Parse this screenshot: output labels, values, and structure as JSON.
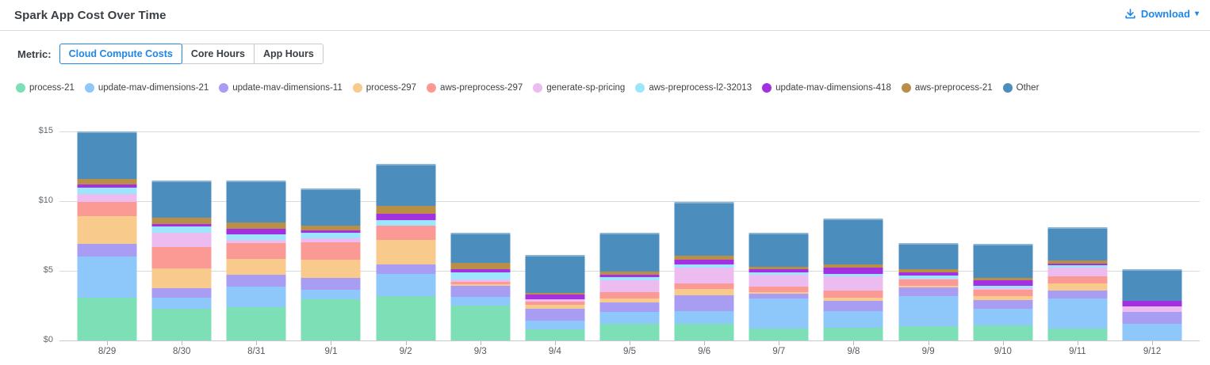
{
  "header": {
    "title": "Spark App Cost Over Time",
    "download_label": "Download",
    "download_icon": "download-icon",
    "caret_icon": "chevron-down-icon"
  },
  "colors": {
    "accent_blue": "#1E87E8",
    "gridline": "#d8dbde",
    "axis_text": "#63696e"
  },
  "metric": {
    "label": "Metric:",
    "options": [
      {
        "label": "Cloud Compute Costs",
        "selected": true
      },
      {
        "label": "Core Hours",
        "selected": false
      },
      {
        "label": "App Hours",
        "selected": false
      }
    ]
  },
  "chart_data": {
    "type": "bar",
    "stacked": true,
    "stack_order": "bottom-to-top",
    "grid": "horizontal",
    "legend_position": "top",
    "ylim": [
      0,
      15
    ],
    "yticks": [
      {
        "label": "$0",
        "value": 0
      },
      {
        "label": "$5",
        "value": 5
      },
      {
        "label": "$10",
        "value": 10
      },
      {
        "label": "$15",
        "value": 15
      }
    ],
    "categories": [
      "8/29",
      "8/30",
      "8/31",
      "9/1",
      "9/2",
      "9/3",
      "9/4",
      "9/5",
      "9/6",
      "9/7",
      "9/8",
      "9/9",
      "9/10",
      "9/11",
      "9/12"
    ],
    "series": [
      {
        "name": "process-21",
        "color": "#7DDFB6",
        "values": [
          3.09,
          2.25,
          2.38,
          2.95,
          3.19,
          2.5,
          0.79,
          1.18,
          1.18,
          0.84,
          0.94,
          1.03,
          1.09,
          0.88,
          0
        ]
      },
      {
        "name": "update-mav-dimensions-21",
        "color": "#8EC7FA",
        "values": [
          2.91,
          0.81,
          1.5,
          0.71,
          1.59,
          0.65,
          0.66,
          0.85,
          0.92,
          2.16,
          1.16,
          2.16,
          1.16,
          2.12,
          1.22
        ]
      },
      {
        "name": "update-mav-dimensions-11",
        "color": "#A89CF3",
        "values": [
          0.94,
          0.69,
          0.85,
          0.81,
          0.66,
          0.75,
          0.8,
          0.69,
          1.13,
          0.34,
          0.75,
          0.6,
          0.66,
          0.57,
          0.84
        ]
      },
      {
        "name": "process-297",
        "color": "#F8CA8C",
        "values": [
          1.97,
          1.44,
          1.14,
          1.34,
          1.78,
          0.13,
          0.32,
          0.28,
          0.48,
          0.13,
          0.24,
          0.15,
          0.28,
          0.5,
          0
        ]
      },
      {
        "name": "aws-preprocess-297",
        "color": "#FB9A95",
        "values": [
          1.03,
          1.5,
          1.13,
          1.26,
          1.03,
          0.17,
          0.23,
          0.47,
          0.36,
          0.38,
          0.48,
          0.43,
          0.47,
          0.52,
          0
        ]
      },
      {
        "name": "generate-sp-pricing",
        "color": "#ECBBF0",
        "values": [
          0.56,
          1.05,
          0.22,
          0.28,
          0,
          0.17,
          0.16,
          0.84,
          1.14,
          0.88,
          1.06,
          0.05,
          0.09,
          0.62,
          0.41
        ]
      },
      {
        "name": "aws-preprocess-l2-32013",
        "color": "#9BE6FC",
        "values": [
          0.45,
          0.45,
          0.41,
          0.38,
          0.41,
          0.54,
          0,
          0.23,
          0.23,
          0.15,
          0.15,
          0.24,
          0.19,
          0.19,
          0
        ]
      },
      {
        "name": "update-mav-dimensions-418",
        "color": "#A331E2",
        "values": [
          0.22,
          0.19,
          0.4,
          0.18,
          0.43,
          0.21,
          0.36,
          0.19,
          0.37,
          0.22,
          0.43,
          0.25,
          0.37,
          0.13,
          0.38
        ]
      },
      {
        "name": "aws-preprocess-21",
        "color": "#B98F47",
        "values": [
          0.41,
          0.43,
          0.41,
          0.34,
          0.55,
          0.45,
          0.11,
          0.24,
          0.25,
          0.19,
          0.23,
          0.18,
          0.19,
          0.19,
          0
        ]
      },
      {
        "name": "Other",
        "color": "#4B8DBC",
        "values": [
          3.43,
          2.68,
          3.05,
          2.68,
          3.05,
          2.16,
          2.72,
          2.76,
          3.88,
          2.44,
          3.32,
          1.91,
          2.44,
          2.44,
          2.25
        ]
      }
    ]
  }
}
